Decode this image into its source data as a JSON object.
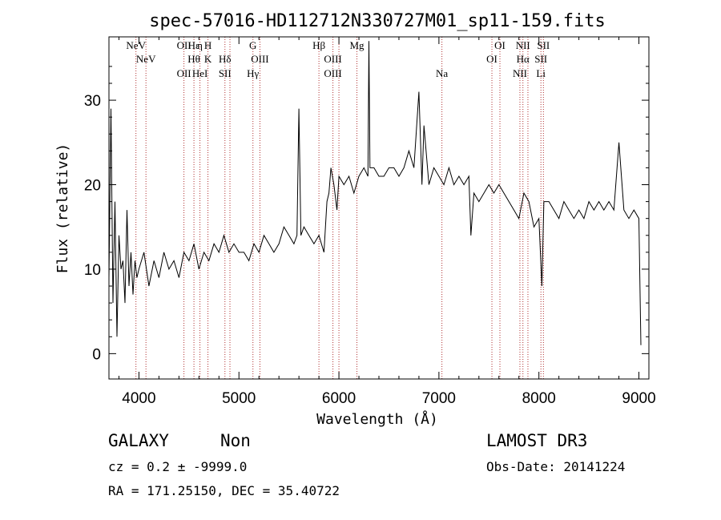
{
  "chart_data": {
    "type": "line",
    "title": "spec-57016-HD112712N330727M01_sp11-159.fits",
    "xlabel": "Wavelength (Å)",
    "ylabel": "Flux (relative)",
    "xlim": [
      3700,
      9100
    ],
    "ylim": [
      -3,
      37.5
    ],
    "xticks": [
      4000,
      5000,
      6000,
      7000,
      8000,
      9000
    ],
    "yticks": [
      0,
      10,
      20,
      30
    ],
    "series": [
      {
        "name": "spectrum",
        "x": [
          3700,
          3720,
          3740,
          3760,
          3780,
          3800,
          3820,
          3840,
          3860,
          3880,
          3900,
          3920,
          3940,
          3960,
          3980,
          4000,
          4050,
          4100,
          4150,
          4200,
          4250,
          4300,
          4350,
          4400,
          4450,
          4500,
          4550,
          4600,
          4650,
          4700,
          4750,
          4800,
          4850,
          4900,
          4950,
          5000,
          5050,
          5100,
          5150,
          5200,
          5250,
          5300,
          5350,
          5400,
          5450,
          5500,
          5550,
          5580,
          5600,
          5620,
          5650,
          5700,
          5750,
          5800,
          5850,
          5880,
          5900,
          5920,
          5950,
          5980,
          6000,
          6050,
          6100,
          6150,
          6200,
          6250,
          6290,
          6300,
          6310,
          6350,
          6400,
          6450,
          6500,
          6550,
          6600,
          6650,
          6700,
          6750,
          6800,
          6830,
          6850,
          6900,
          6950,
          7000,
          7050,
          7100,
          7150,
          7200,
          7250,
          7300,
          7320,
          7350,
          7400,
          7450,
          7500,
          7550,
          7600,
          7650,
          7700,
          7750,
          7800,
          7850,
          7900,
          7950,
          8000,
          8030,
          8050,
          8100,
          8150,
          8200,
          8250,
          8300,
          8350,
          8400,
          8450,
          8500,
          8550,
          8600,
          8650,
          8700,
          8750,
          8800,
          8850,
          8900,
          8950,
          9000,
          9020
        ],
        "y": [
          9,
          29,
          6,
          18,
          2,
          14,
          10,
          11,
          6,
          17,
          8,
          12,
          7,
          11,
          9,
          10,
          12,
          8,
          11,
          9,
          12,
          10,
          11,
          9,
          12,
          11,
          13,
          10,
          12,
          11,
          13,
          12,
          14,
          12,
          13,
          12,
          12,
          11,
          13,
          12,
          14,
          13,
          12,
          13,
          15,
          14,
          13,
          14,
          29,
          14,
          15,
          14,
          13,
          14,
          12,
          18,
          19,
          22,
          20,
          17,
          21,
          20,
          21,
          19,
          21,
          22,
          21,
          37,
          22,
          22,
          21,
          21,
          22,
          22,
          21,
          22,
          24,
          22,
          31,
          20,
          27,
          20,
          22,
          21,
          20,
          22,
          20,
          21,
          20,
          21,
          14,
          19,
          18,
          19,
          20,
          19,
          20,
          19,
          18,
          17,
          16,
          19,
          18,
          15,
          16,
          8,
          18,
          18,
          17,
          16,
          18,
          17,
          16,
          17,
          16,
          18,
          17,
          18,
          17,
          18,
          17,
          25,
          17,
          16,
          17,
          16,
          1
        ]
      }
    ],
    "line_markers": [
      {
        "w": 3970,
        "rows": [
          "NeV"
        ]
      },
      {
        "w": 4070,
        "rows": [
          "",
          "NeV",
          ""
        ]
      },
      {
        "w": 4450,
        "rows": [
          "OII",
          "",
          "OII"
        ]
      },
      {
        "w": 4550,
        "rows": [
          "Hε",
          "Hθ",
          ""
        ]
      },
      {
        "w": 4610,
        "rows": [
          "η",
          "",
          "HeI"
        ]
      },
      {
        "w": 4690,
        "rows": [
          "H",
          "K",
          ""
        ]
      },
      {
        "w": 4860,
        "rows": [
          "",
          "Hδ",
          "SII"
        ]
      },
      {
        "w": 4910,
        "rows": []
      },
      {
        "w": 5140,
        "rows": [
          "G",
          "",
          "Hγ"
        ]
      },
      {
        "w": 5210,
        "rows": [
          "",
          "OIII",
          ""
        ]
      },
      {
        "w": 5800,
        "rows": [
          "Hβ",
          "",
          ""
        ]
      },
      {
        "w": 5940,
        "rows": [
          "",
          "OIII",
          "OIII"
        ]
      },
      {
        "w": 6000,
        "rows": []
      },
      {
        "w": 6180,
        "rows": [
          "Mg",
          "",
          ""
        ]
      },
      {
        "w": 7030,
        "rows": [
          "",
          "",
          "Na"
        ]
      },
      {
        "w": 7530,
        "rows": [
          "",
          "OI",
          ""
        ]
      },
      {
        "w": 7610,
        "rows": [
          "OI",
          "",
          ""
        ]
      },
      {
        "w": 7810,
        "rows": [
          "",
          "",
          "NII"
        ]
      },
      {
        "w": 7840,
        "rows": [
          "NII",
          "Hα",
          ""
        ]
      },
      {
        "w": 7890,
        "rows": []
      },
      {
        "w": 8020,
        "rows": [
          "",
          "SII",
          "Li"
        ]
      },
      {
        "w": 8045,
        "rows": [
          "SII",
          "",
          ""
        ]
      }
    ]
  },
  "info": {
    "class": "GALAXY",
    "subclass": "Non",
    "survey": "LAMOST DR3",
    "cz": "cz = 0.2 ± -9999.0",
    "obs_date": "Obs-Date: 20141224",
    "radec": "RA = 171.25150, DEC =  35.40722"
  }
}
